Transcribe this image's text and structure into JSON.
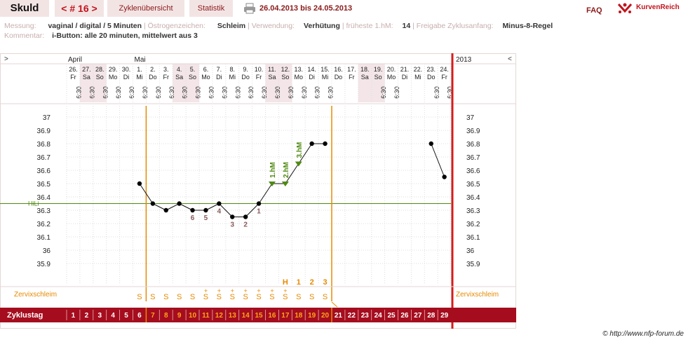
{
  "header": {
    "name": "Skuld",
    "cycle": "< # 16 >",
    "tabs": [
      "Zyklenübersicht",
      "Statistik"
    ],
    "date_range": "26.04.2013 bis 24.05.2013",
    "faq": "FAQ",
    "brand": "KurvenReich"
  },
  "info": {
    "messung_label": "Messung:",
    "messung_value": "vaginal / digital / 5 Minuten",
    "oestrogen_label": "Östrogenzeichen:",
    "oestrogen_value": "Schleim",
    "verwendung_label": "Verwendung:",
    "verwendung_value": "Verhütung",
    "fruehe_label": "früheste 1.hM:",
    "fruehe_value": "14",
    "freigabe_label": "Freigabe Zyklusanfang:",
    "freigabe_value": "Minus-8-Regel",
    "kommentar_label": "Kommentar:",
    "kommentar_value": "i-Button: alle 20 minuten, mittelwert aus 3"
  },
  "nav": {
    "prev": ">",
    "next": "<"
  },
  "colors": {
    "accent": "#8b1a1a",
    "bar": "#a50d1e",
    "orange": "#e68a00",
    "green": "#4f8a10",
    "redline": "#d31c1c",
    "weekend": "#f3e5e8"
  },
  "copyright": "© http://www.nfp-forum.de",
  "chart_data": {
    "type": "line",
    "year_label": "2013",
    "months": [
      {
        "label": "April",
        "day_index": 0
      },
      {
        "label": "Mai",
        "day_index": 5
      }
    ],
    "days": [
      {
        "date": "26.",
        "wd": "Fr",
        "time": "6:30",
        "cd": "1"
      },
      {
        "date": "27.",
        "wd": "Sa",
        "time": "6:30",
        "cd": "2"
      },
      {
        "date": "28.",
        "wd": "So",
        "time": "6:30",
        "cd": "3"
      },
      {
        "date": "29.",
        "wd": "Mo",
        "time": "6:30",
        "cd": "4"
      },
      {
        "date": "30.",
        "wd": "Di",
        "time": "6:30",
        "cd": "5"
      },
      {
        "date": "1.",
        "wd": "Mi",
        "time": "6:30",
        "cd": "6"
      },
      {
        "date": "2.",
        "wd": "Do",
        "time": "6:30",
        "cd": "7"
      },
      {
        "date": "3.",
        "wd": "Fr",
        "time": "6:30",
        "cd": "8"
      },
      {
        "date": "4.",
        "wd": "Sa",
        "time": "6:30",
        "cd": "9"
      },
      {
        "date": "5.",
        "wd": "So",
        "time": "6:30",
        "cd": "10"
      },
      {
        "date": "6.",
        "wd": "Mo",
        "time": "6:30",
        "cd": "11"
      },
      {
        "date": "7.",
        "wd": "Di",
        "time": "6:30",
        "cd": "12"
      },
      {
        "date": "8.",
        "wd": "Mi",
        "time": "6:30",
        "cd": "13"
      },
      {
        "date": "9.",
        "wd": "Do",
        "time": "6:30",
        "cd": "14"
      },
      {
        "date": "10.",
        "wd": "Fr",
        "time": "6:30",
        "cd": "15"
      },
      {
        "date": "11.",
        "wd": "Sa",
        "time": "6:30",
        "cd": "16"
      },
      {
        "date": "12.",
        "wd": "So",
        "time": "6:30",
        "cd": "17"
      },
      {
        "date": "13.",
        "wd": "Mo",
        "time": "6:30",
        "cd": "18"
      },
      {
        "date": "14.",
        "wd": "Di",
        "time": "6:30",
        "cd": "19"
      },
      {
        "date": "15.",
        "wd": "Mi",
        "time": "6:30",
        "cd": "20"
      },
      {
        "date": "16.",
        "wd": "Do",
        "time": "",
        "cd": "21"
      },
      {
        "date": "17.",
        "wd": "Fr",
        "time": "",
        "cd": "22"
      },
      {
        "date": "18.",
        "wd": "Sa",
        "time": "",
        "cd": "23"
      },
      {
        "date": "19.",
        "wd": "So",
        "time": "6:30",
        "cd": "24"
      },
      {
        "date": "20.",
        "wd": "Mo",
        "time": "6:30",
        "cd": "25"
      },
      {
        "date": "21.",
        "wd": "Di",
        "time": "",
        "cd": "26"
      },
      {
        "date": "22.",
        "wd": "Mi",
        "time": "",
        "cd": "27"
      },
      {
        "date": "23.",
        "wd": "Do",
        "time": "6:30",
        "cd": "28"
      },
      {
        "date": "24.",
        "wd": "Fr",
        "time": "6:30",
        "cd": "29"
      }
    ],
    "weekend_indices": [
      1,
      2,
      8,
      9,
      15,
      16,
      22,
      23
    ],
    "temperatures": [
      null,
      null,
      null,
      null,
      null,
      36.5,
      36.35,
      36.3,
      36.35,
      36.3,
      36.3,
      36.35,
      36.25,
      36.25,
      36.35,
      36.5,
      36.5,
      36.65,
      36.8,
      36.8,
      null,
      null,
      null,
      null,
      null,
      null,
      null,
      36.8,
      36.55
    ],
    "ylim": [
      35.9,
      37.0
    ],
    "y_ticks": [
      "37",
      "36.9",
      "36.8",
      "36.7",
      "36.6",
      "36.5",
      "36.4",
      "36.3",
      "36.2",
      "36.1",
      "36",
      "35.9"
    ],
    "hilfslinie": {
      "label": "HiLi",
      "value": 36.35
    },
    "low_labels": [
      {
        "day_index": 9,
        "label": "6"
      },
      {
        "day_index": 10,
        "label": "5"
      },
      {
        "day_index": 11,
        "label": "4"
      },
      {
        "day_index": 12,
        "label": "3"
      },
      {
        "day_index": 13,
        "label": "2"
      },
      {
        "day_index": 14,
        "label": "1"
      }
    ],
    "high_labels": [
      {
        "day_index": 15,
        "label": "1.hM"
      },
      {
        "day_index": 16,
        "label": "2.hM"
      },
      {
        "day_index": 17,
        "label": "3.hM"
      }
    ],
    "cervix_label": "Zervixschleim",
    "cervix": [
      "",
      "",
      "",
      "",
      "",
      "S",
      "S",
      "S",
      "S",
      "S",
      "S+",
      "S+",
      "S+",
      "S+",
      "S+",
      "S+",
      "S+",
      "S",
      "S",
      "S",
      "",
      "",
      "",
      "",
      "",
      "",
      "",
      "",
      ""
    ],
    "cervix_peak": [
      {
        "day_index": 16,
        "label": "H"
      },
      {
        "day_index": 17,
        "label": "1"
      },
      {
        "day_index": 18,
        "label": "2"
      },
      {
        "day_index": 19,
        "label": "3"
      }
    ],
    "zyklustag_label": "Zyklustag",
    "infertile_end_day_index": 5,
    "fertile_end_day_index": 19
  }
}
